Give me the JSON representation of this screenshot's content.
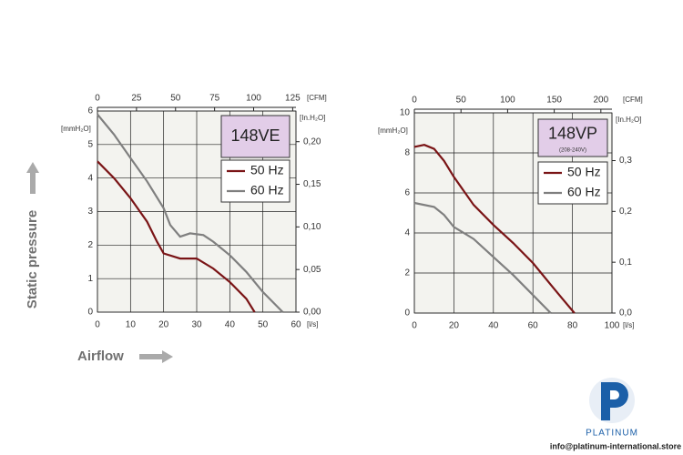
{
  "chart_data": [
    {
      "type": "line",
      "title": "148VE",
      "x_unit": "[l/s]",
      "x2_unit": "[CFM]",
      "y_unit": "[mmH₂O]",
      "y2_unit": "[In.H₂O]",
      "xlim": [
        0,
        60
      ],
      "xticks": [
        0,
        10,
        20,
        30,
        40,
        50,
        60
      ],
      "x2lim": [
        0,
        127.1
      ],
      "x2ticks": [
        0,
        25,
        50,
        75,
        100,
        125
      ],
      "ylim": [
        0,
        6
      ],
      "yticks": [
        0,
        1,
        2,
        3,
        4,
        5,
        6
      ],
      "y2lim": [
        0,
        0.236
      ],
      "y2ticks": [
        {
          "value": 0,
          "label": "0,00"
        },
        {
          "value": 0.05,
          "label": "0,05"
        },
        {
          "value": 0.1,
          "label": "0,10"
        },
        {
          "value": 0.15,
          "label": "0,15"
        },
        {
          "value": 0.2,
          "label": "0,20"
        }
      ],
      "grid": true,
      "series": [
        {
          "name": "50 Hz",
          "color": "#7a1416",
          "x": [
            0,
            5,
            10,
            15,
            18,
            20,
            25,
            30,
            35,
            40,
            45,
            47.5
          ],
          "values": [
            4.5,
            4.0,
            3.4,
            2.7,
            2.1,
            1.75,
            1.6,
            1.6,
            1.3,
            0.9,
            0.4,
            0
          ]
        },
        {
          "name": "60 Hz",
          "color": "#7f7f7f",
          "x": [
            0,
            5,
            10,
            15,
            20,
            22,
            25,
            28,
            32,
            35,
            40,
            45,
            50,
            56
          ],
          "values": [
            5.9,
            5.3,
            4.6,
            3.9,
            3.1,
            2.6,
            2.25,
            2.35,
            2.3,
            2.1,
            1.7,
            1.2,
            0.6,
            0
          ]
        }
      ]
    },
    {
      "type": "line",
      "title": "148VP",
      "subtitle": "(208-240V)",
      "x_unit": "[l/s]",
      "x2_unit": "[CFM]",
      "y_unit": "[mmH₂O]",
      "y2_unit": "[In.H₂O]",
      "xlim": [
        0,
        100
      ],
      "xticks": [
        0,
        20,
        40,
        60,
        80,
        100
      ],
      "x2lim": [
        0,
        211.9
      ],
      "x2ticks": [
        0,
        50,
        100,
        150,
        200
      ],
      "ylim": [
        0,
        10
      ],
      "yticks": [
        0,
        2,
        4,
        6,
        8,
        10
      ],
      "y2lim": [
        0,
        0.394
      ],
      "y2ticks": [
        {
          "value": 0,
          "label": "0,0"
        },
        {
          "value": 0.1,
          "label": "0,1"
        },
        {
          "value": 0.2,
          "label": "0,2"
        },
        {
          "value": 0.3,
          "label": "0,3"
        }
      ],
      "grid": true,
      "series": [
        {
          "name": "50 Hz",
          "color": "#7a1416",
          "x": [
            0,
            5,
            10,
            15,
            20,
            30,
            40,
            50,
            60,
            70,
            75,
            81
          ],
          "values": [
            8.3,
            8.4,
            8.2,
            7.6,
            6.8,
            5.4,
            4.4,
            3.5,
            2.5,
            1.3,
            0.7,
            0
          ]
        },
        {
          "name": "60 Hz",
          "color": "#7f7f7f",
          "x": [
            0,
            10,
            15,
            20,
            30,
            40,
            50,
            60,
            69
          ],
          "values": [
            5.5,
            5.3,
            4.9,
            4.3,
            3.7,
            2.8,
            1.9,
            0.9,
            0
          ]
        }
      ]
    }
  ],
  "page": {
    "y_label": "Static pressure",
    "x_label": "Airflow"
  },
  "brand": {
    "name": "PLATINUM",
    "email": "info@platinum-international.store"
  }
}
